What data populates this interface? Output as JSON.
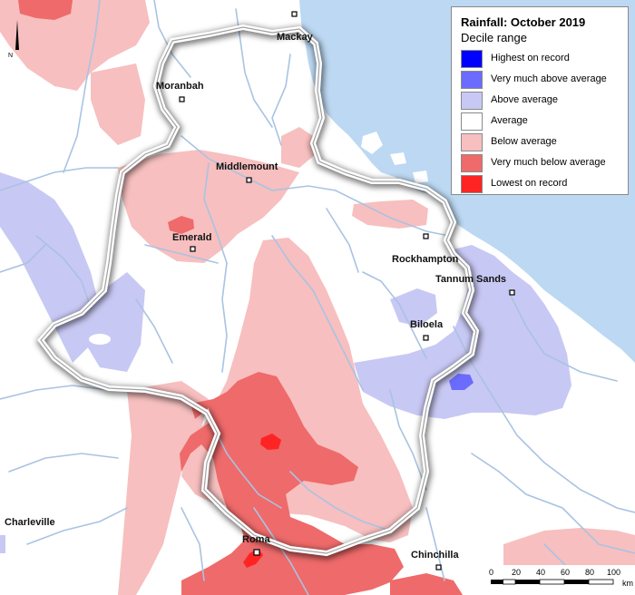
{
  "legend": {
    "title": "Rainfall: October 2019",
    "subtitle": "Decile range",
    "items": [
      {
        "label": "Highest on record",
        "color": "#0000ff"
      },
      {
        "label": "Very much above average",
        "color": "#6b6bff"
      },
      {
        "label": "Above average",
        "color": "#c8c8f4"
      },
      {
        "label": "Average",
        "color": "#ffffff"
      },
      {
        "label": "Below average",
        "color": "#f7bfbf"
      },
      {
        "label": "Very much below average",
        "color": "#ef6a6a"
      },
      {
        "label": "Lowest on record",
        "color": "#ff2424"
      }
    ]
  },
  "towns": [
    {
      "name": "Mackay"
    },
    {
      "name": "Moranbah"
    },
    {
      "name": "Middlemount"
    },
    {
      "name": "Emerald"
    },
    {
      "name": "Rockhampton"
    },
    {
      "name": "Tannum Sands"
    },
    {
      "name": "Biloela"
    },
    {
      "name": "Roma"
    },
    {
      "name": "Chinchilla"
    },
    {
      "name": "Charleville"
    }
  ],
  "scale_bar": {
    "ticks": [
      "0",
      "20",
      "40",
      "60",
      "80",
      "100"
    ],
    "unit": "km"
  },
  "north_arrow": {
    "label": "N"
  },
  "colors": {
    "ocean": "#bcd8f2",
    "rivers": "#a9c3e2",
    "catchment_border": "#a0a0a0"
  }
}
